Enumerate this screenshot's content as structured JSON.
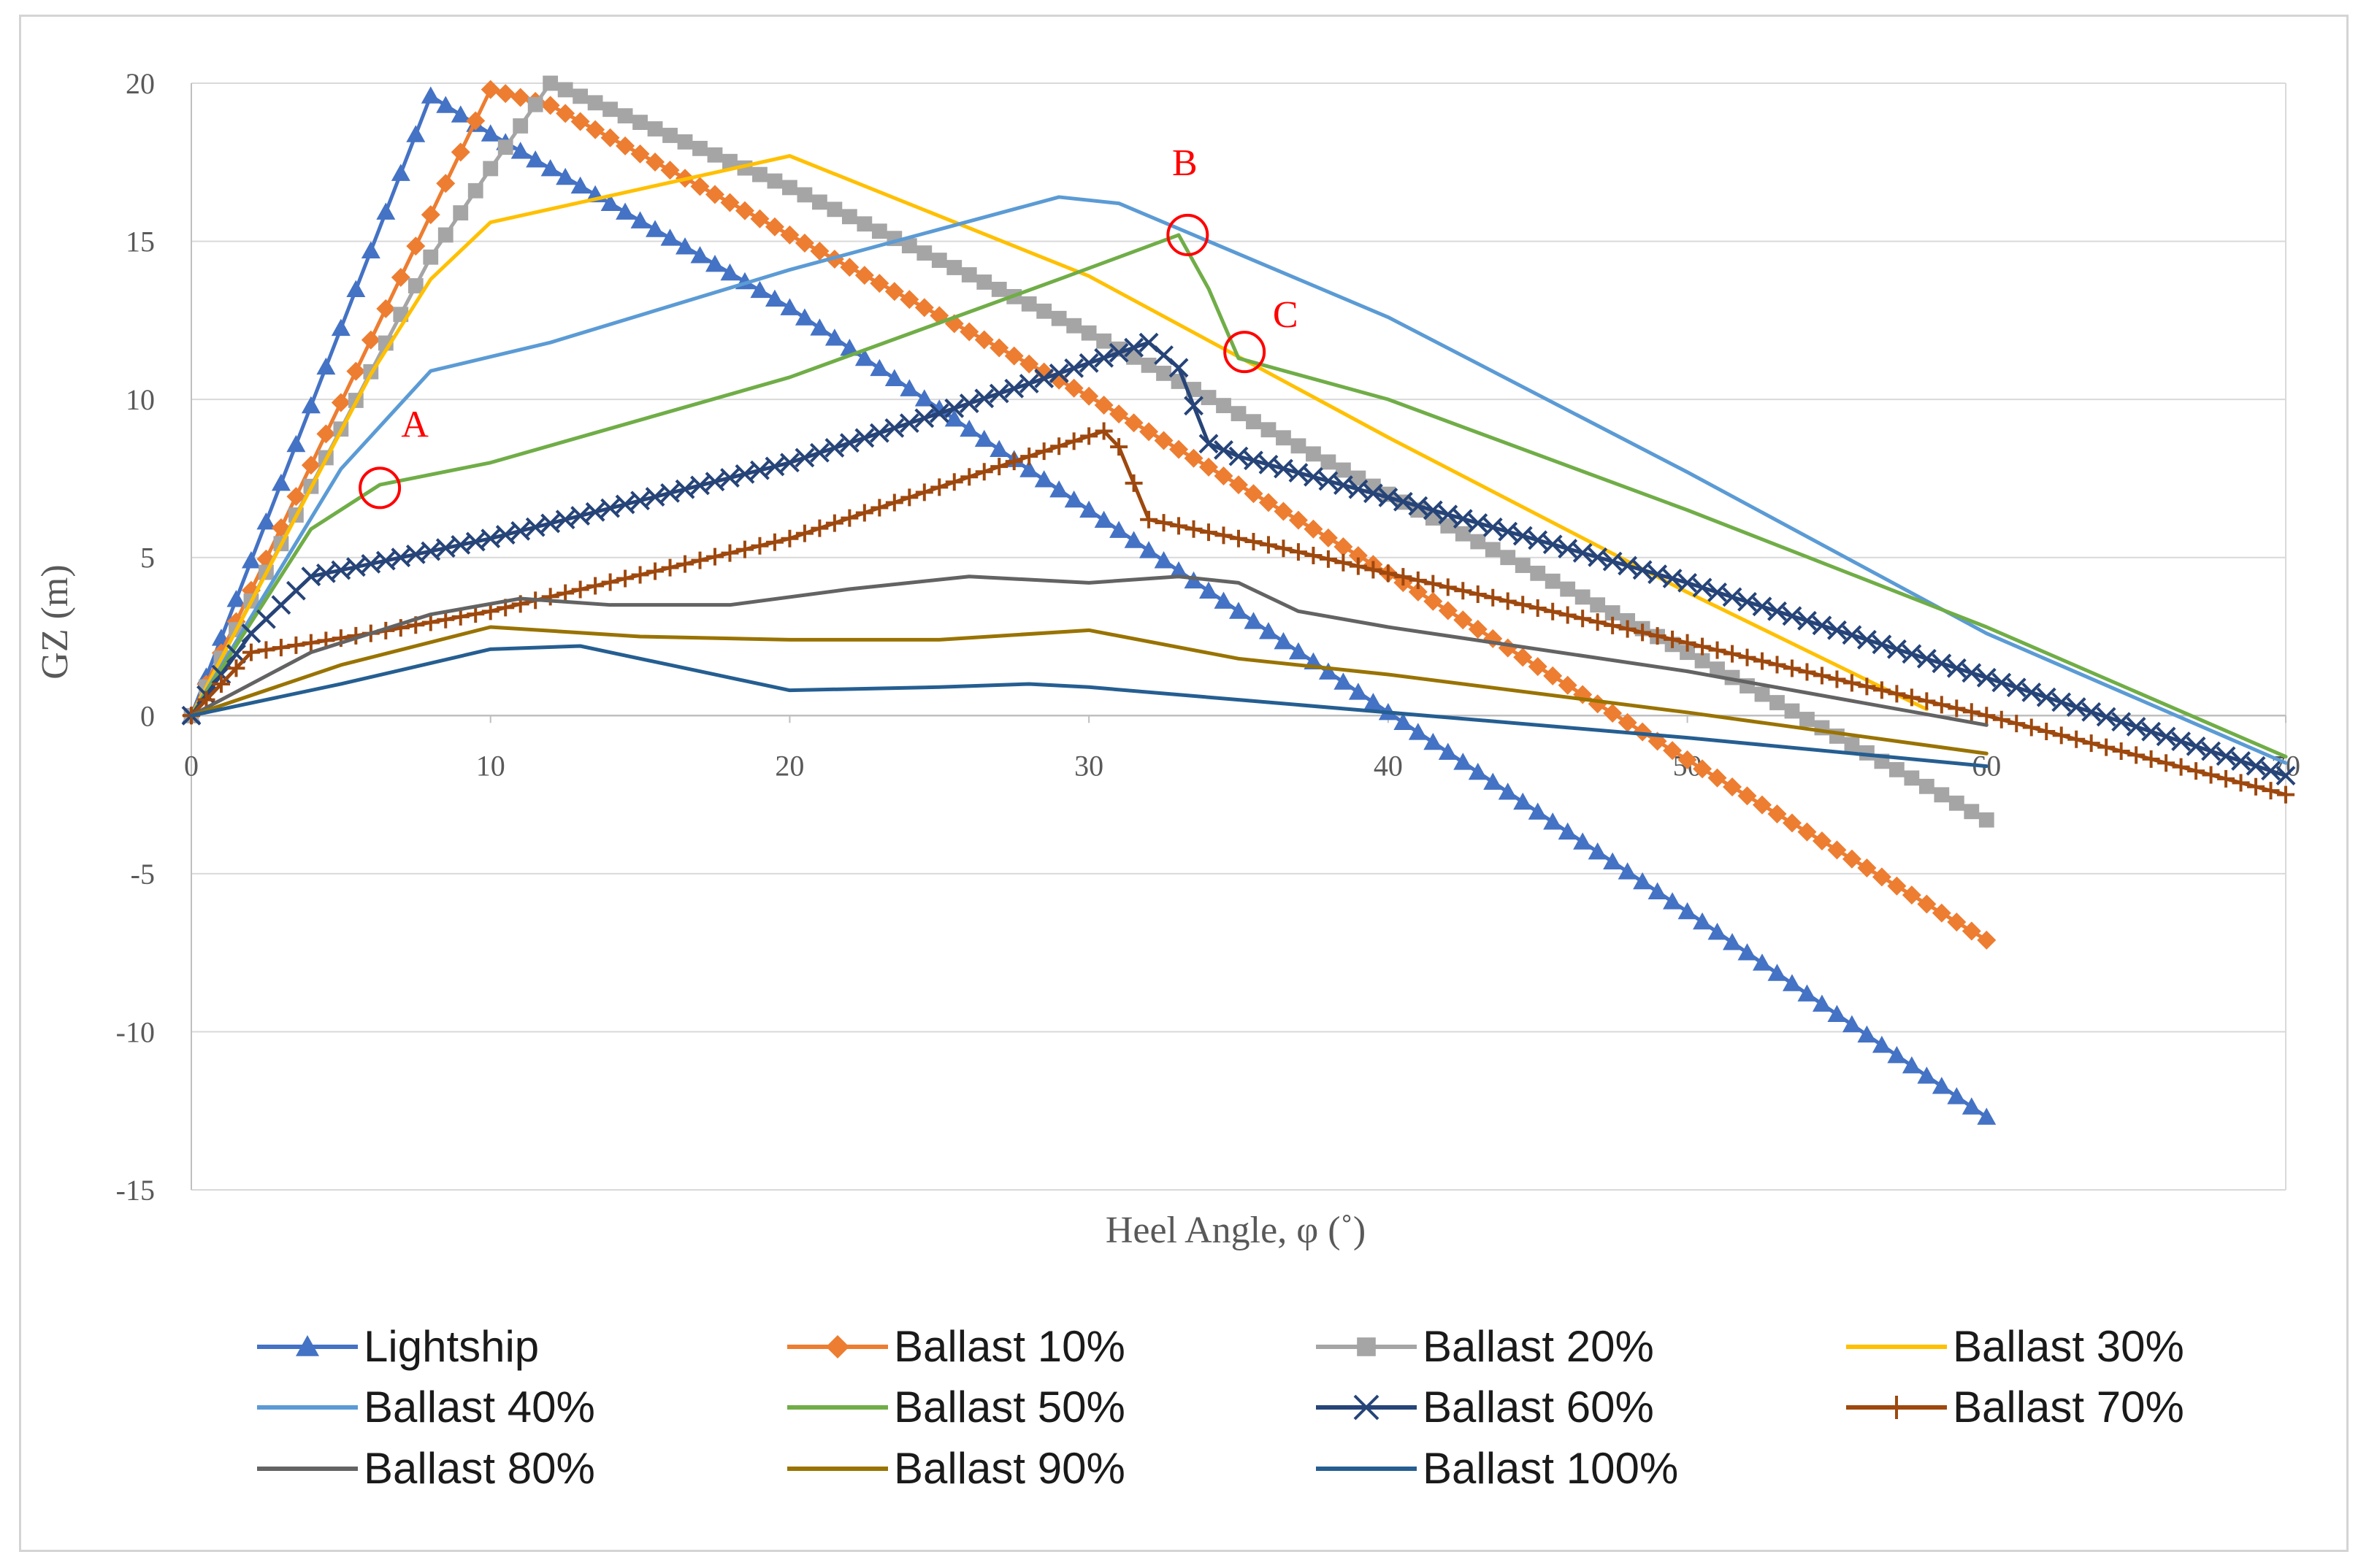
{
  "chart_data": {
    "type": "line",
    "title": "",
    "xlabel": "Heel Angle, φ (˚)",
    "ylabel": "GZ (m)",
    "xlim": [
      0,
      70
    ],
    "ylim": [
      -15,
      20
    ],
    "x_ticks": [
      "0",
      "10",
      "20",
      "30",
      "40",
      "50",
      "60",
      "70"
    ],
    "y_ticks": [
      "-15",
      "-10",
      "-5",
      "0",
      "5",
      "10",
      "15",
      "20"
    ],
    "grid": "horizontal",
    "legend_position": "bottom",
    "series": [
      {
        "name": "Lightship",
        "color": "#4472c4",
        "marker": "triangle",
        "points": [
          [
            0,
            0
          ],
          [
            8,
            19.6
          ],
          [
            10,
            18.4
          ],
          [
            20,
            12.9
          ],
          [
            30,
            6.5
          ],
          [
            40,
            0.1
          ],
          [
            50,
            -6.2
          ],
          [
            60,
            -12.7
          ]
        ]
      },
      {
        "name": "Ballast 10%",
        "color": "#ed7d31",
        "marker": "diamond",
        "points": [
          [
            0,
            0
          ],
          [
            10,
            19.8
          ],
          [
            12,
            19.3
          ],
          [
            20,
            15.2
          ],
          [
            30,
            10.1
          ],
          [
            40,
            4.5
          ],
          [
            50,
            -1.4
          ],
          [
            60,
            -7.1
          ]
        ]
      },
      {
        "name": "Ballast 20%",
        "color": "#a5a5a5",
        "marker": "square",
        "points": [
          [
            0,
            0
          ],
          [
            8,
            14.5
          ],
          [
            10,
            17.3
          ],
          [
            12,
            20
          ],
          [
            20,
            16.7
          ],
          [
            30,
            12.1
          ],
          [
            40,
            7
          ],
          [
            50,
            2
          ],
          [
            60,
            -3.3
          ]
        ]
      },
      {
        "name": "Ballast 30%",
        "color": "#ffc000",
        "marker": "none",
        "points": [
          [
            0,
            0
          ],
          [
            6,
            10.8
          ],
          [
            8,
            13.8
          ],
          [
            10,
            15.6
          ],
          [
            20,
            17.7
          ],
          [
            30,
            13.9
          ],
          [
            40,
            8.8
          ],
          [
            50,
            3.9
          ],
          [
            58,
            0.2
          ]
        ]
      },
      {
        "name": "Ballast 40%",
        "color": "#5b9bd5",
        "marker": "none",
        "points": [
          [
            0,
            0
          ],
          [
            5,
            7.8
          ],
          [
            8,
            10.9
          ],
          [
            12,
            11.8
          ],
          [
            20,
            14.1
          ],
          [
            29,
            16.4
          ],
          [
            31,
            16.2
          ],
          [
            40,
            12.6
          ],
          [
            50,
            7.7
          ],
          [
            60,
            2.6
          ],
          [
            70,
            -1.5
          ]
        ]
      },
      {
        "name": "Ballast 50%",
        "color": "#70ad47",
        "marker": "none",
        "points": [
          [
            0,
            0
          ],
          [
            4,
            5.9
          ],
          [
            6.3,
            7.3
          ],
          [
            10,
            8
          ],
          [
            20,
            10.7
          ],
          [
            29,
            13.8
          ],
          [
            33,
            15.2
          ],
          [
            34,
            13.5
          ],
          [
            35,
            11.3
          ],
          [
            40,
            10
          ],
          [
            50,
            6.5
          ],
          [
            60,
            2.8
          ],
          [
            70,
            -1.3
          ]
        ]
      },
      {
        "name": "Ballast 60%",
        "color": "#264478",
        "marker": "x",
        "points": [
          [
            0,
            0
          ],
          [
            2,
            2.6
          ],
          [
            4,
            4.4
          ],
          [
            10,
            5.6
          ],
          [
            20,
            8
          ],
          [
            28,
            10.5
          ],
          [
            32,
            11.8
          ],
          [
            33,
            11
          ],
          [
            33.5,
            9.8
          ],
          [
            34,
            8.6
          ],
          [
            35,
            8.2
          ],
          [
            40,
            6.9
          ],
          [
            50,
            4.2
          ],
          [
            60,
            1.2
          ],
          [
            70,
            -1.9
          ]
        ]
      },
      {
        "name": "Ballast 70%",
        "color": "#9e480e",
        "marker": "plus",
        "points": [
          [
            0,
            0
          ],
          [
            2,
            2
          ],
          [
            6,
            2.6
          ],
          [
            10,
            3.3
          ],
          [
            20,
            5.6
          ],
          [
            28,
            8.2
          ],
          [
            30.5,
            9
          ],
          [
            31,
            8.5
          ],
          [
            32,
            6.2
          ],
          [
            36,
            5.4
          ],
          [
            40,
            4.5
          ],
          [
            50,
            2.3
          ],
          [
            60,
            0
          ],
          [
            70,
            -2.5
          ]
        ]
      },
      {
        "name": "Ballast 80%",
        "color": "#636363",
        "marker": "none",
        "points": [
          [
            0,
            0
          ],
          [
            4,
            2
          ],
          [
            8,
            3.2
          ],
          [
            11,
            3.7
          ],
          [
            14,
            3.5
          ],
          [
            18,
            3.5
          ],
          [
            22,
            4
          ],
          [
            26,
            4.4
          ],
          [
            30,
            4.2
          ],
          [
            33,
            4.4
          ],
          [
            35,
            4.2
          ],
          [
            37,
            3.3
          ],
          [
            40,
            2.8
          ],
          [
            50,
            1.4
          ],
          [
            60,
            -0.3
          ]
        ]
      },
      {
        "name": "Ballast 90%",
        "color": "#997300",
        "marker": "none",
        "points": [
          [
            0,
            0
          ],
          [
            5,
            1.6
          ],
          [
            10,
            2.8
          ],
          [
            15,
            2.5
          ],
          [
            20,
            2.4
          ],
          [
            25,
            2.4
          ],
          [
            30,
            2.7
          ],
          [
            35,
            1.8
          ],
          [
            40,
            1.3
          ],
          [
            50,
            0.1
          ],
          [
            60,
            -1.2
          ]
        ]
      },
      {
        "name": "Ballast 100%",
        "color": "#255e91",
        "marker": "none",
        "points": [
          [
            0,
            0
          ],
          [
            5,
            1
          ],
          [
            10,
            2.1
          ],
          [
            13,
            2.2
          ],
          [
            16,
            1.6
          ],
          [
            20,
            0.8
          ],
          [
            25,
            0.9
          ],
          [
            28,
            1
          ],
          [
            30,
            0.9
          ],
          [
            35,
            0.5
          ],
          [
            40,
            0.1
          ],
          [
            50,
            -0.7
          ],
          [
            60,
            -1.6
          ]
        ]
      }
    ],
    "annotations": [
      {
        "label": "A",
        "x": 6.3,
        "y": 7.2
      },
      {
        "label": "B",
        "x": 33.3,
        "y": 15.2
      },
      {
        "label": "C",
        "x": 35.2,
        "y": 11.5
      }
    ]
  }
}
